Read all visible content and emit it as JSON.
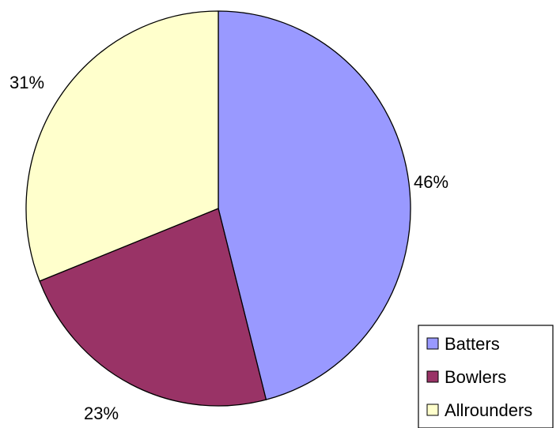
{
  "chart_data": {
    "type": "pie",
    "categories": [
      "Batters",
      "Bowlers",
      "Allrounders"
    ],
    "values": [
      46,
      23,
      31
    ],
    "labels": [
      "46%",
      "23%",
      "31%"
    ],
    "colors": [
      "#9999ff",
      "#993366",
      "#ffffcc"
    ],
    "legend_position": "bottom-right"
  }
}
